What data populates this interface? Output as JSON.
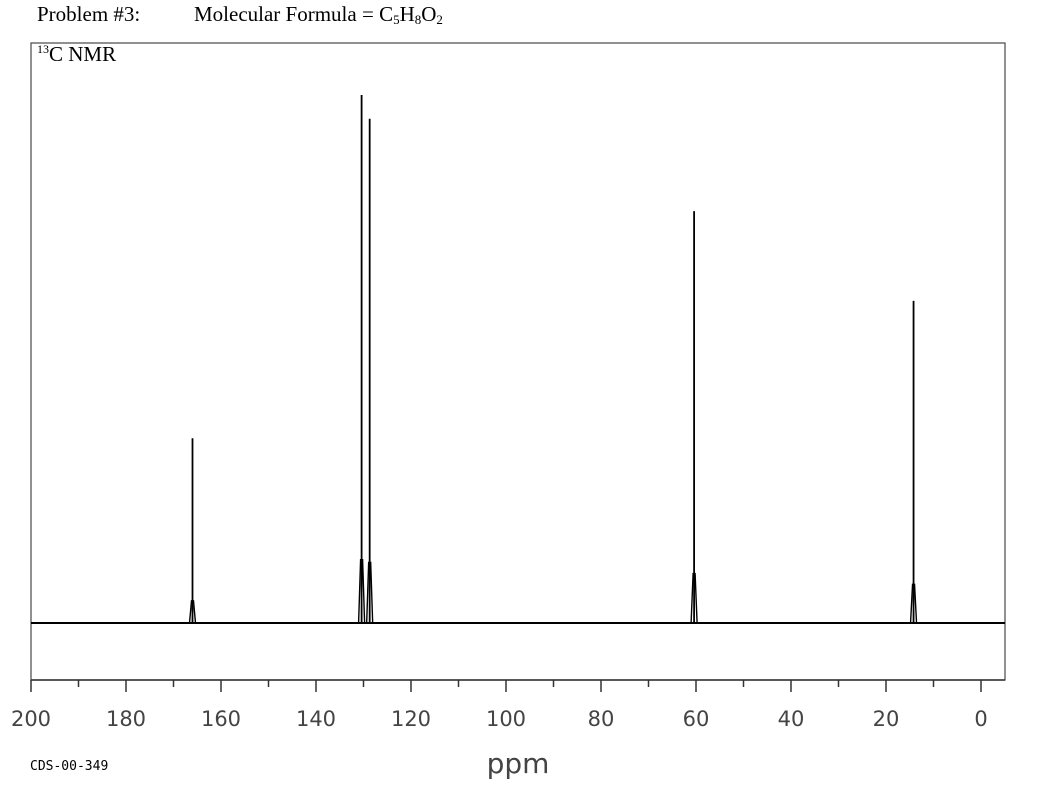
{
  "header": {
    "problem": "Problem #3:",
    "formula_prefix": "Molecular Formula = ",
    "formula_parts": [
      {
        "text": "C"
      },
      {
        "text": "5",
        "sub": true
      },
      {
        "text": "H"
      },
      {
        "text": "8",
        "sub": true
      },
      {
        "text": "O"
      },
      {
        "text": "2",
        "sub": true
      }
    ]
  },
  "nmr_label": {
    "sup": "13",
    "text": "C NMR"
  },
  "footer": {
    "code": "CDS-00-349"
  },
  "chart_data": {
    "type": "line",
    "title": "13C NMR",
    "xlabel": "ppm",
    "xlim": [
      200,
      0
    ],
    "x_reversed": true,
    "major_ticks": [
      200,
      180,
      160,
      140,
      120,
      100,
      80,
      60,
      40,
      20,
      0
    ],
    "minor_ticks": [
      190,
      170,
      150,
      130,
      110,
      90,
      70,
      50,
      30,
      10
    ],
    "grid": false,
    "peaks": [
      {
        "ppm": 166.0,
        "intensity": 0.35
      },
      {
        "ppm": 130.4,
        "intensity": 1.0
      },
      {
        "ppm": 128.7,
        "intensity": 0.955
      },
      {
        "ppm": 60.4,
        "intensity": 0.78
      },
      {
        "ppm": 14.2,
        "intensity": 0.61
      }
    ]
  }
}
